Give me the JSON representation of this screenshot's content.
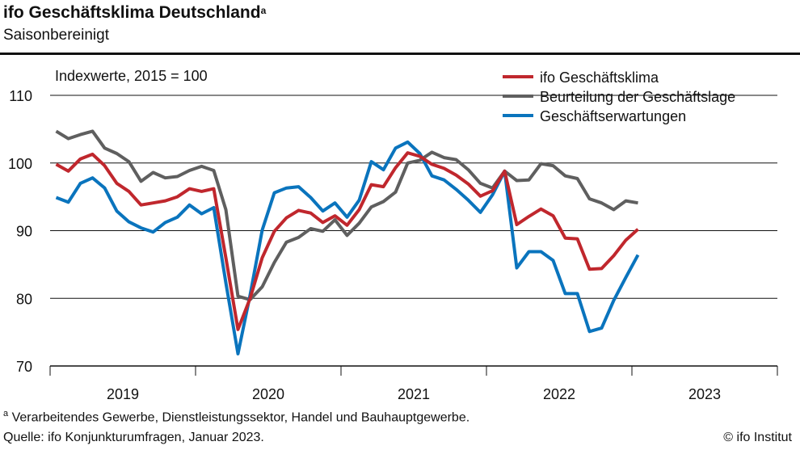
{
  "title": "ifo Geschäftsklima Deutschland",
  "title_note_marker": "a",
  "subtitle": "Saisonbereinigt",
  "footnote": "Verarbeitendes  Gewerbe,  Dienstleistungssektor,  Handel und Bauhauptgewerbe.",
  "footnote_marker": "a",
  "source": "Quelle:  ifo Konjunkturumfragen,  Januar 2023.",
  "copyright": "© ifo Institut",
  "chart_data": {
    "type": "line",
    "ylabel": "Indexwerte, 2015 = 100",
    "ylim": [
      70,
      110
    ],
    "yticks": [
      70,
      80,
      90,
      100,
      110
    ],
    "grid": true,
    "legend_position": "top-right",
    "x_start": "2019-01",
    "x_end": "2023-01",
    "x_frequency": "monthly",
    "xtick_labels": [
      "2019",
      "2020",
      "2021",
      "2022",
      "2023"
    ],
    "series": [
      {
        "name": "ifo Geschäftsklima",
        "color": "#c0272d",
        "values": [
          99.8,
          98.8,
          100.6,
          101.3,
          99.6,
          97.0,
          95.8,
          93.8,
          94.1,
          94.4,
          95.0,
          96.2,
          95.8,
          96.2,
          86.0,
          75.4,
          80.0,
          86.0,
          89.9,
          91.9,
          93.0,
          92.6,
          91.2,
          92.2,
          90.8,
          93.1,
          96.8,
          96.5,
          99.3,
          101.5,
          101.0,
          99.8,
          99.2,
          98.2,
          96.9,
          95.1,
          95.9,
          98.8,
          90.9,
          92.1,
          93.2,
          92.2,
          88.9,
          88.8,
          84.3,
          84.4,
          86.3,
          88.6,
          90.2
        ]
      },
      {
        "name": "Beurteilung der Geschäftslage",
        "color": "#5f5f5f",
        "values": [
          104.7,
          103.6,
          104.2,
          104.7,
          102.2,
          101.4,
          100.2,
          97.3,
          98.6,
          97.8,
          98.0,
          98.9,
          99.5,
          98.9,
          93.1,
          80.3,
          79.8,
          81.7,
          85.3,
          88.3,
          89.0,
          90.3,
          89.9,
          91.6,
          89.3,
          91.1,
          93.5,
          94.3,
          95.7,
          100.0,
          100.4,
          101.6,
          100.8,
          100.5,
          99.0,
          97.0,
          96.3,
          98.8,
          97.4,
          97.5,
          99.9,
          99.6,
          98.1,
          97.7,
          94.7,
          94.1,
          93.1,
          94.4,
          94.1
        ]
      },
      {
        "name": "Geschäftserwartungen",
        "color": "#0a74bd",
        "values": [
          94.9,
          94.2,
          97.0,
          97.8,
          96.3,
          92.9,
          91.3,
          90.4,
          89.8,
          91.2,
          92.0,
          93.8,
          92.5,
          93.4,
          82.3,
          71.8,
          80.5,
          90.1,
          95.6,
          96.3,
          96.5,
          94.9,
          92.9,
          94.1,
          92.0,
          94.5,
          100.2,
          99.0,
          102.2,
          103.1,
          101.4,
          98.1,
          97.5,
          96.1,
          94.5,
          92.7,
          95.3,
          98.8,
          84.5,
          86.9,
          86.9,
          85.6,
          80.7,
          80.7,
          75.1,
          75.6,
          79.7,
          83.1,
          86.4
        ]
      }
    ]
  }
}
